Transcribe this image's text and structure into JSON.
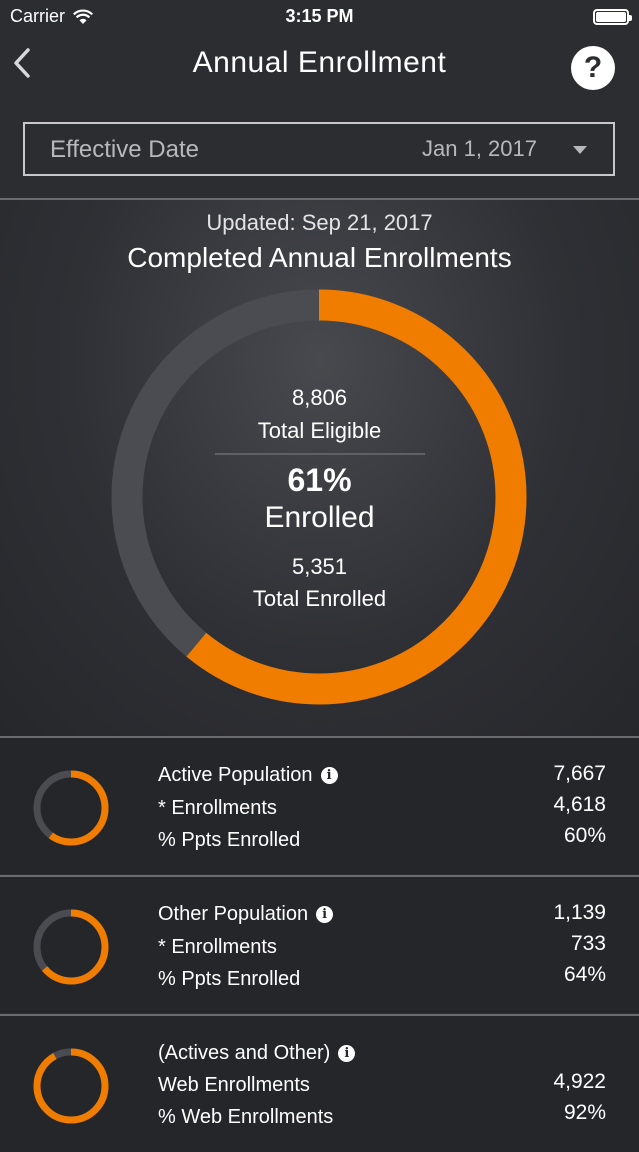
{
  "status_bar": {
    "carrier": "Carrier",
    "time": "3:15 PM"
  },
  "nav": {
    "title": "Annual Enrollment",
    "help_glyph": "?"
  },
  "effective_date": {
    "label": "Effective Date",
    "value": "Jan 1, 2017"
  },
  "summary": {
    "updated": "Updated: Sep 21, 2017",
    "title": "Completed Annual Enrollments",
    "total_eligible_value": "8,806",
    "total_eligible_label": "Total Eligible",
    "percent": "61%",
    "percent_label": "Enrolled",
    "total_enrolled_value": "5,351",
    "total_enrolled_label": "Total Enrolled",
    "fraction": 0.61
  },
  "rows": [
    {
      "title": "Active Population",
      "title_value": "7,667",
      "line2_label": "* Enrollments",
      "line2_value": "4,618",
      "line3_label": "% Ppts Enrolled",
      "line3_value": "60%",
      "fraction": 0.6
    },
    {
      "title": "Other Population",
      "title_value": "1,139",
      "line2_label": "* Enrollments",
      "line2_value": "733",
      "line3_label": "% Ppts Enrolled",
      "line3_value": "64%",
      "fraction": 0.64
    },
    {
      "title": "(Actives and Other)",
      "title_value": "",
      "line2_label": "Web Enrollments",
      "line2_value": "4,922",
      "line3_label": "% Web Enrollments",
      "line3_value": "92%",
      "fraction": 0.92
    }
  ],
  "colors": {
    "accent": "#f07d00",
    "track": "#4b4c52",
    "background": "#2c2d31"
  },
  "icons": {
    "back": "chevron-left-icon",
    "help": "question-circle-icon",
    "dropdown": "caret-down-icon",
    "info": "info-circle-icon",
    "wifi": "wifi-icon",
    "battery": "battery-icon"
  }
}
